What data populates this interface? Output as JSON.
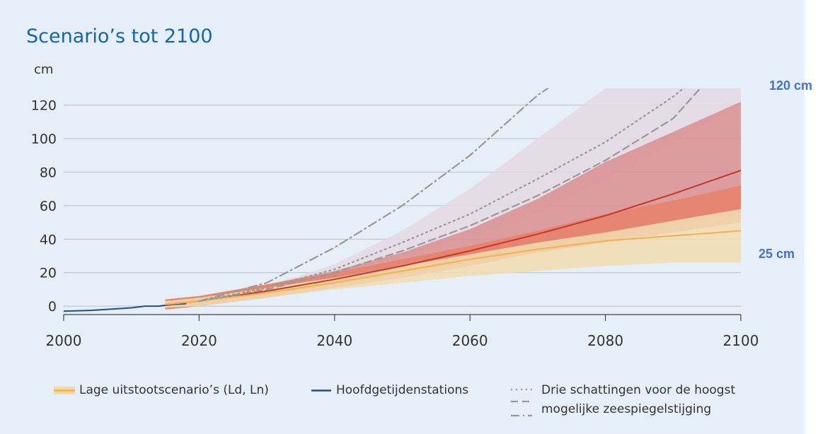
{
  "chart_data": {
    "type": "area",
    "title": "Scenario’s tot 2100",
    "ylabel": "cm",
    "xlim": [
      2000,
      2100
    ],
    "ylim": [
      -5,
      130
    ],
    "x_ticks": [
      2000,
      2020,
      2040,
      2060,
      2080,
      2100
    ],
    "y_ticks": [
      0,
      20,
      40,
      60,
      80,
      100,
      120
    ],
    "grid": "horizontal",
    "annotations": [
      {
        "text": "120 cm",
        "y": 120
      },
      {
        "text": "25 cm",
        "y": 25
      }
    ],
    "x": [
      2015,
      2020,
      2030,
      2040,
      2050,
      2060,
      2070,
      2080,
      2090,
      2100
    ],
    "bands": [
      {
        "role": "extreme-range",
        "color": "#e3d8e3",
        "lower": [
          0,
          2,
          10,
          20,
          30,
          42,
          56,
          76,
          98,
          122
        ],
        "upper": [
          1,
          3,
          12,
          25,
          45,
          70,
          100,
          130,
          130,
          130
        ]
      },
      {
        "role": "high-scenario-likely",
        "color": "#d98e8f",
        "lower": [
          -2,
          0,
          5,
          11,
          17,
          24,
          32,
          40,
          48,
          56
        ],
        "upper": [
          4,
          6,
          13,
          21,
          32,
          46,
          64,
          86,
          104,
          122
        ]
      },
      {
        "role": "high-scenario-central",
        "color": "#e8816a",
        "lower": [
          -2,
          0,
          6,
          13,
          19,
          26,
          32,
          38,
          44,
          50
        ],
        "upper": [
          4,
          6,
          13,
          20,
          28,
          36,
          45,
          55,
          63,
          72
        ]
      },
      {
        "role": "low-scenario",
        "color": "#f2dcb0",
        "lower": [
          -1,
          0,
          5,
          10,
          14,
          18,
          21,
          24,
          26,
          26
        ],
        "upper": [
          3,
          5,
          11,
          17,
          24,
          31,
          38,
          44,
          51,
          58
        ]
      }
    ],
    "series": [
      {
        "name": "Hoofdgetijdenstations",
        "style": "solid",
        "color": "#1f4e8c",
        "x": [
          2000,
          2004,
          2008,
          2010,
          2012,
          2014,
          2016,
          2018
        ],
        "y": [
          -3,
          -2.5,
          -1.5,
          -1,
          0,
          0,
          1,
          1.5
        ]
      },
      {
        "name": "",
        "style": "solid",
        "color": "#c8352a",
        "x": [
          2015,
          2020,
          2030,
          2040,
          2050,
          2060,
          2070,
          2080,
          2090,
          2100
        ],
        "y": [
          1,
          3,
          9,
          16,
          24,
          33,
          43,
          54,
          67,
          81
        ]
      },
      {
        "name": "Lage uitstootscenario’s (Ld, Ln)",
        "style": "solid",
        "color": "#f3b04f",
        "x": [
          2015,
          2020,
          2030,
          2040,
          2050,
          2060,
          2070,
          2080,
          2090,
          2100
        ],
        "y": [
          1,
          3,
          8,
          14,
          21,
          28,
          34,
          39,
          42,
          45
        ]
      },
      {
        "name": "",
        "style": "dashdot",
        "color": "#999999",
        "x": [
          2020,
          2030,
          2040,
          2050,
          2060,
          2070,
          2071.5
        ],
        "y": [
          3,
          14,
          35,
          60,
          90,
          126,
          130
        ]
      },
      {
        "name": "",
        "style": "dotted",
        "color": "#999999",
        "x": [
          2020,
          2030,
          2040,
          2050,
          2060,
          2070,
          2080,
          2090,
          2091.5
        ],
        "y": [
          3,
          11,
          22,
          38,
          55,
          76,
          98,
          125,
          130
        ]
      },
      {
        "name": "",
        "style": "dashed",
        "color": "#999999",
        "x": [
          2020,
          2030,
          2040,
          2050,
          2060,
          2070,
          2080,
          2090,
          2094
        ],
        "y": [
          3,
          10,
          20,
          33,
          48,
          66,
          87,
          112,
          130
        ]
      }
    ]
  },
  "legend": {
    "low": "Lage uitstootscenario’s (Ld, Ln)",
    "stations": "Hoofdgetijdenstations",
    "extreme_line1": "Drie schattingen voor de hoogst",
    "extreme_line2": "mogelijke zeespiegelstijging"
  },
  "colors": {
    "panel_bg": "#e6eef7",
    "title": "#1466a8",
    "annotation": "#4472c4"
  }
}
